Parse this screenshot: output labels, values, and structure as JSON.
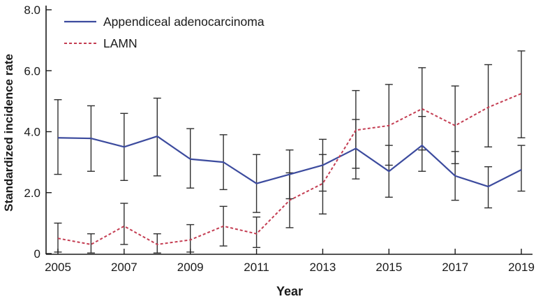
{
  "figure": {
    "background": "#ffffff",
    "error_bar_color": "#2f2f2f",
    "axis_color": "#1a1a1a"
  },
  "chart_data": {
    "type": "line",
    "title": "",
    "xlabel": "Year",
    "ylabel": "Standardized incidence rate",
    "xlim": [
      2005,
      2019
    ],
    "ylim": [
      0,
      8
    ],
    "grid": false,
    "legend_position": "top-left",
    "x": [
      2005,
      2006,
      2007,
      2008,
      2009,
      2010,
      2011,
      2012,
      2013,
      2014,
      2015,
      2016,
      2017,
      2018,
      2019
    ],
    "x_ticks": [
      2005,
      2007,
      2009,
      2011,
      2013,
      2015,
      2017,
      2019
    ],
    "x_tick_labels": [
      "2005",
      "2007",
      "2009",
      "2011",
      "2013",
      "2015",
      "2017",
      "2019"
    ],
    "y_ticks": [
      0,
      2,
      4,
      6,
      8
    ],
    "y_tick_labels": [
      "0",
      "2.0",
      "4.0",
      "6.0",
      "8.0"
    ],
    "error_bars": true,
    "series": [
      {
        "name": "Appendiceal adenocarcinoma",
        "color": "#3c4b9e",
        "line_style": "solid",
        "values": [
          3.8,
          3.78,
          3.5,
          3.85,
          3.1,
          3.0,
          2.3,
          2.6,
          2.9,
          3.45,
          2.7,
          3.55,
          2.55,
          2.2,
          2.75
        ],
        "ci_low": [
          2.6,
          2.7,
          2.4,
          2.55,
          2.15,
          2.1,
          1.35,
          1.8,
          2.05,
          2.45,
          1.85,
          2.7,
          1.75,
          1.5,
          2.05
        ],
        "ci_high": [
          5.05,
          4.85,
          4.6,
          5.1,
          4.1,
          3.9,
          3.25,
          3.4,
          3.75,
          4.4,
          3.55,
          4.5,
          3.35,
          2.85,
          3.55
        ]
      },
      {
        "name": "LAMN",
        "color": "#c43d52",
        "line_style": "dashed",
        "values": [
          0.5,
          0.3,
          0.9,
          0.3,
          0.45,
          0.9,
          0.65,
          1.75,
          2.3,
          4.05,
          4.2,
          4.75,
          4.2,
          4.8,
          5.25
        ],
        "ci_low": [
          0.05,
          0.02,
          0.3,
          0.02,
          0.05,
          0.25,
          0.2,
          0.85,
          1.3,
          2.8,
          2.9,
          3.4,
          2.95,
          3.5,
          3.8
        ],
        "ci_high": [
          1.0,
          0.65,
          1.65,
          0.65,
          0.95,
          1.55,
          1.2,
          2.65,
          3.25,
          5.35,
          5.55,
          6.1,
          5.5,
          6.2,
          6.65
        ]
      }
    ]
  }
}
